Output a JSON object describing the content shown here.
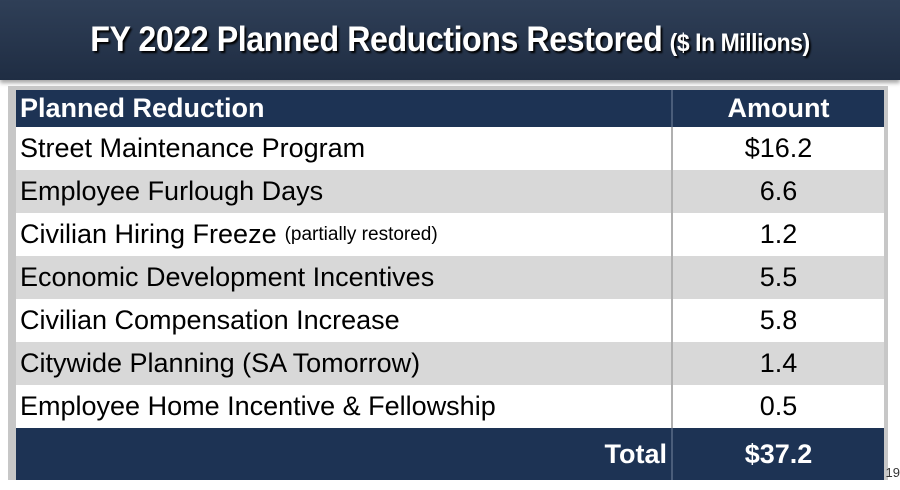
{
  "title": {
    "main": "FY 2022 Planned Reductions Restored",
    "sub": "($ In Millions)"
  },
  "table": {
    "headers": [
      "Planned Reduction",
      "Amount"
    ],
    "rows": [
      {
        "label": "Street Maintenance Program",
        "note": "",
        "amount": "$16.2"
      },
      {
        "label": "Employee Furlough Days",
        "note": "",
        "amount": "6.6"
      },
      {
        "label": "Civilian Hiring Freeze",
        "note": "(partially restored)",
        "amount": "1.2"
      },
      {
        "label": "Economic Development Incentives",
        "note": "",
        "amount": "5.5"
      },
      {
        "label": "Civilian Compensation Increase",
        "note": "",
        "amount": "5.8"
      },
      {
        "label": "Citywide Planning (SA Tomorrow)",
        "note": "",
        "amount": "1.4"
      },
      {
        "label": "Employee Home Incentive & Fellowship",
        "note": "",
        "amount": "0.5"
      }
    ],
    "total": {
      "label": "Total",
      "amount": "$37.2"
    }
  },
  "page_number": "19",
  "colors": {
    "header_bg": "#1d3354",
    "stripe": "#d8d8d8",
    "title_bg": "#263650"
  }
}
